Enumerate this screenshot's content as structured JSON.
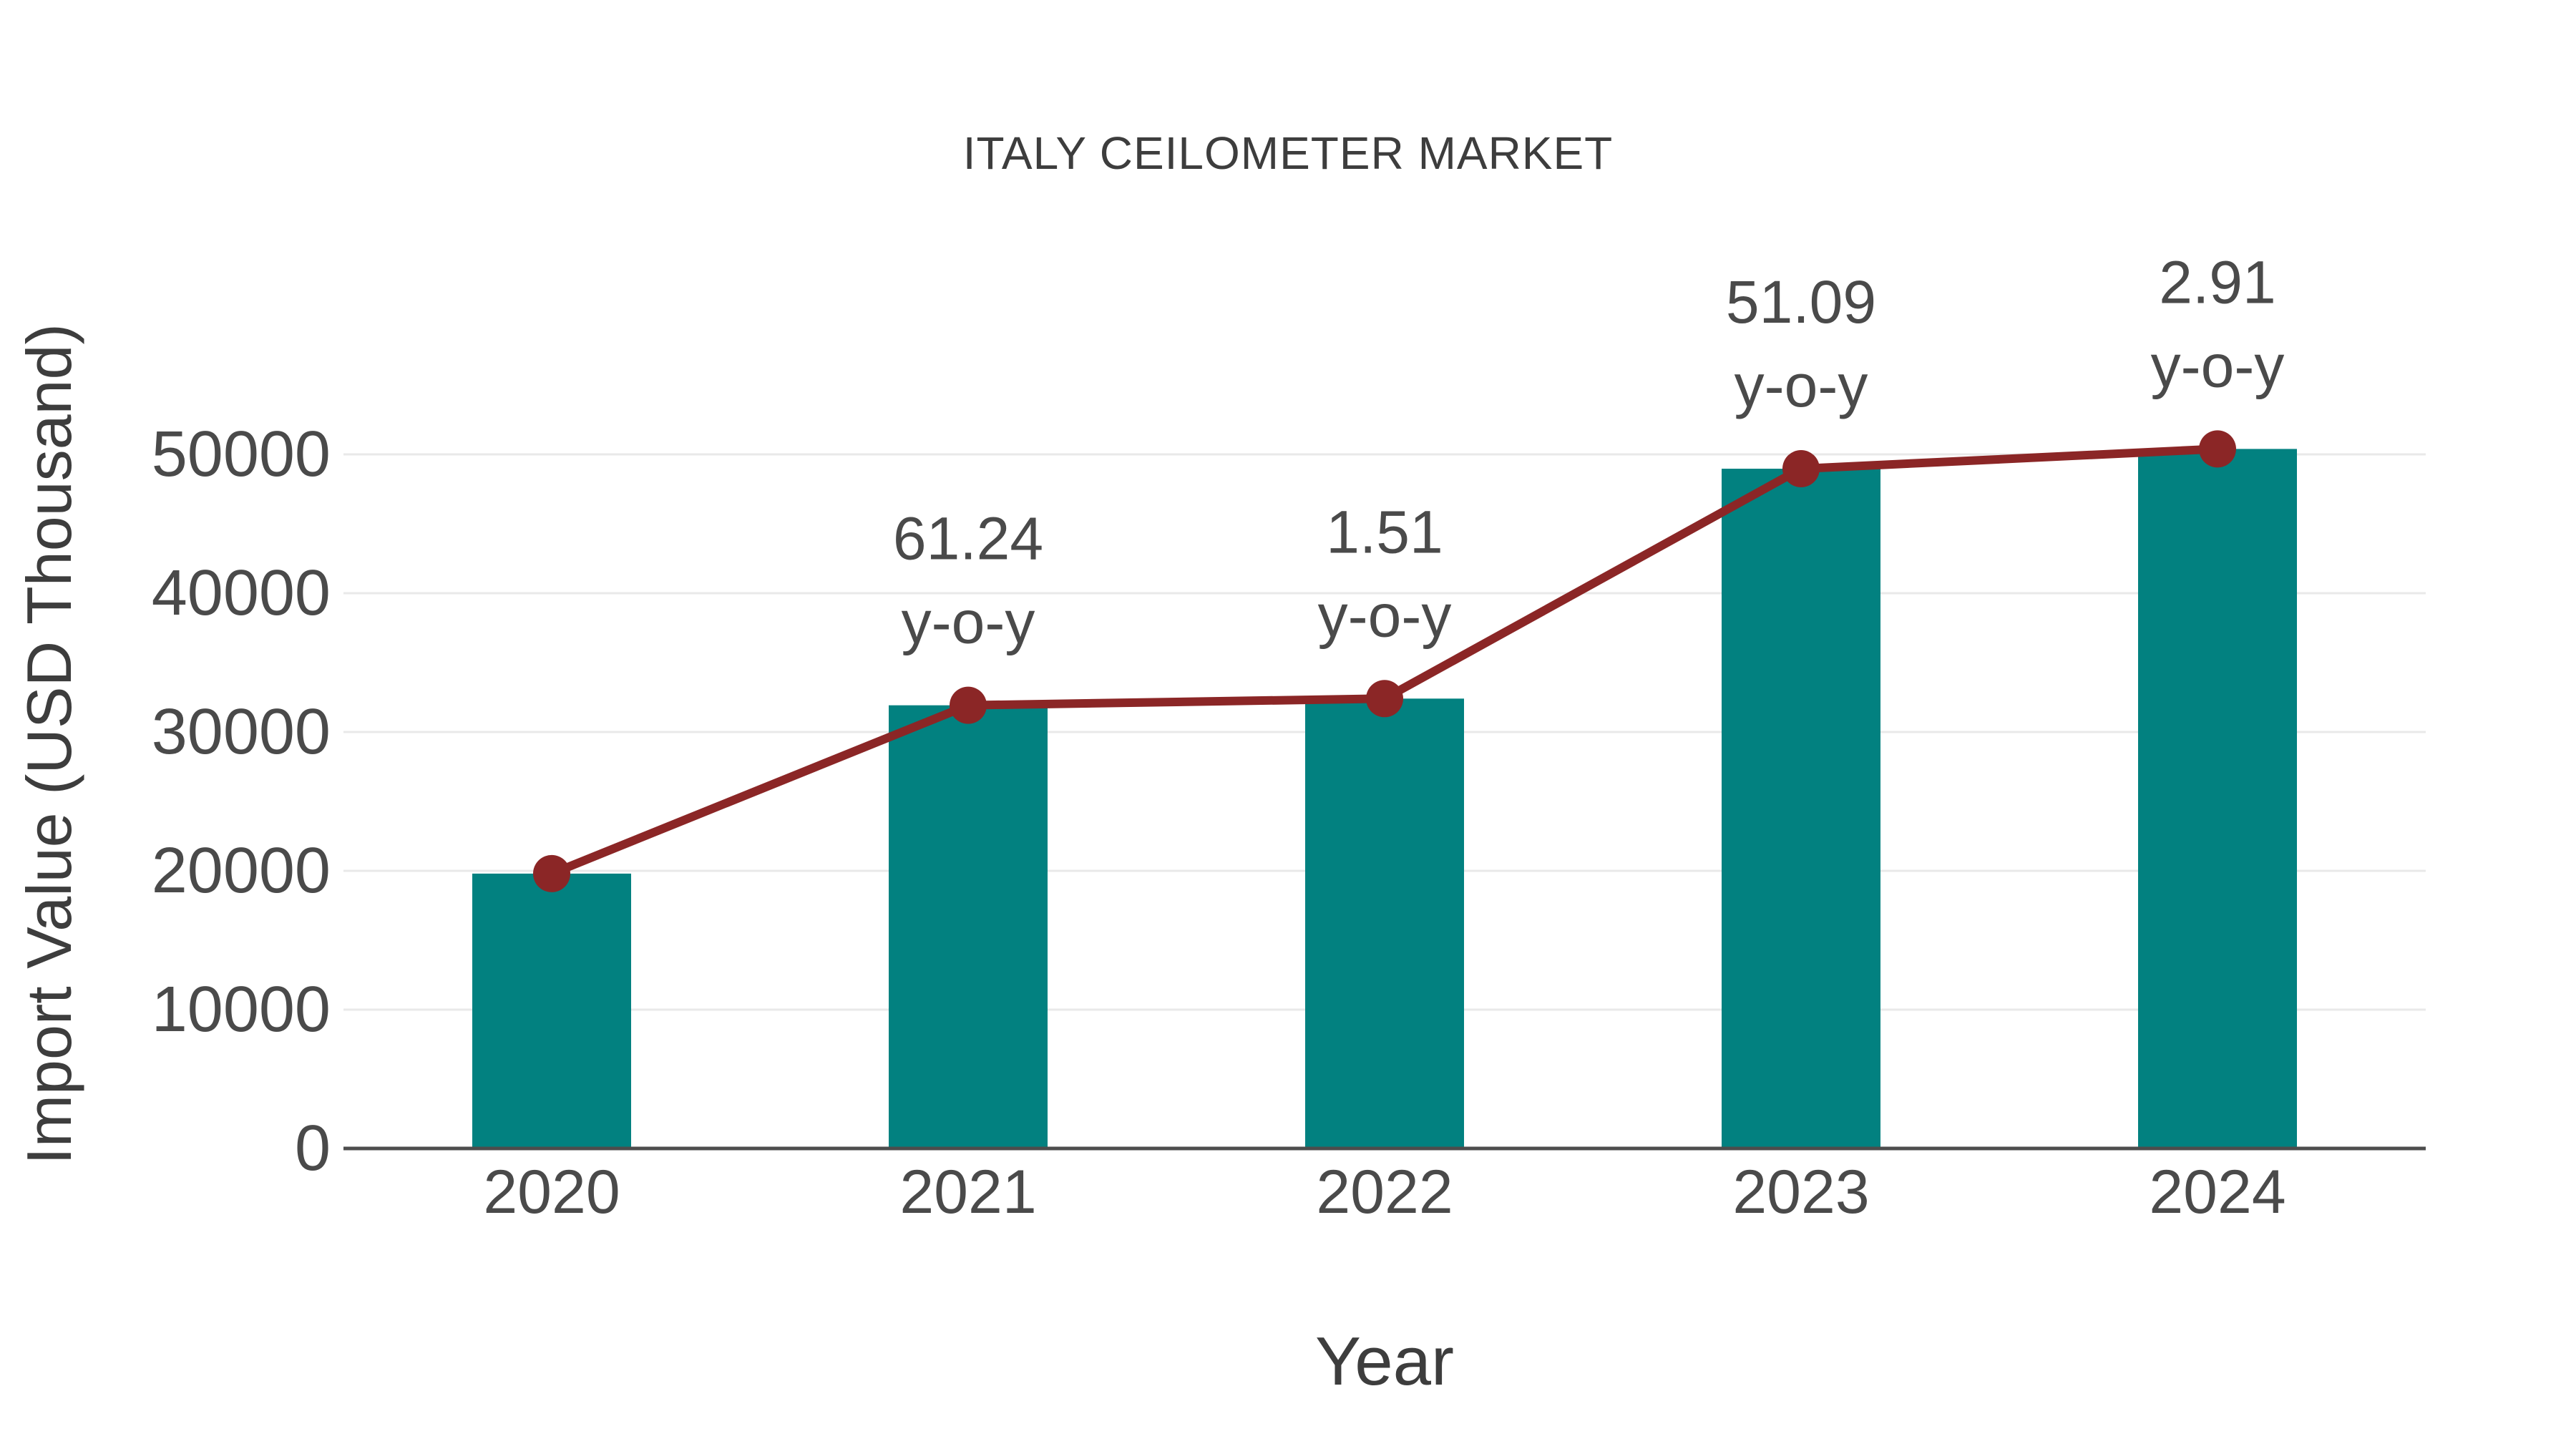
{
  "chart_data": {
    "type": "combo-bar-line",
    "title": "ITALY CEILOMETER MARKET",
    "xlabel": "Year",
    "ylabel": "Import Value (USD Thousand)",
    "categories": [
      "2020",
      "2021",
      "2022",
      "2023",
      "2024"
    ],
    "series": [
      {
        "name": "Import Value",
        "type": "bar",
        "values": [
          19800,
          31925,
          32407,
          48967,
          50392
        ]
      },
      {
        "name": "y-o-y growth",
        "type": "line",
        "percent_values": [
          null,
          61.24,
          1.51,
          51.09,
          2.91
        ],
        "plotted_on": "bar-tops"
      }
    ],
    "annotations": [
      {
        "category": "2021",
        "line1": "61.24",
        "line2": "y-o-y"
      },
      {
        "category": "2022",
        "line1": "1.51",
        "line2": "y-o-y"
      },
      {
        "category": "2023",
        "line1": "51.09",
        "line2": "y-o-y"
      },
      {
        "category": "2024",
        "line1": "2.91",
        "line2": "y-o-y"
      }
    ],
    "y_ticks": [
      0,
      10000,
      20000,
      30000,
      40000,
      50000
    ],
    "ylim": [
      0,
      52000
    ],
    "grid": true,
    "legend": false,
    "colors": {
      "bar": "#028180",
      "line": "#8b2626",
      "marker": "#8b2626",
      "grid": "#e9e9e9",
      "axis_line": "#4d4d4d",
      "tick_text": "#4a4a4a",
      "annotation_text": "#4a4a4a",
      "title_text": "#3d3d3d",
      "background": "#ffffff"
    }
  }
}
